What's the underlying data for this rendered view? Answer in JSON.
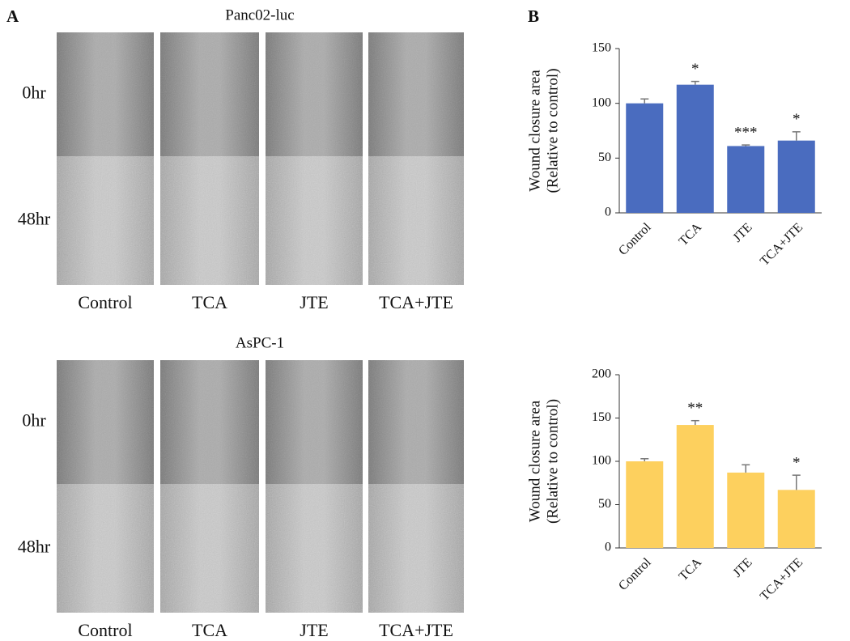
{
  "panel_a": {
    "label": "A",
    "blocks": [
      {
        "title": "Panc02-luc",
        "rows": [
          "0hr",
          "48hr"
        ],
        "columns": [
          "Control",
          "TCA",
          "JTE",
          "TCA+JTE"
        ]
      },
      {
        "title": "AsPC-1",
        "rows": [
          "0hr",
          "48hr"
        ],
        "columns": [
          "Control",
          "TCA",
          "JTE",
          "TCA+JTE"
        ]
      }
    ]
  },
  "panel_b": {
    "label": "B"
  },
  "chart_data": [
    {
      "type": "bar",
      "ylabel": [
        "Wound closure area",
        "(Relative to control)"
      ],
      "categories": [
        "Control",
        "TCA",
        "JTE",
        "TCA+JTE"
      ],
      "values": [
        100,
        117,
        61,
        66
      ],
      "errors": [
        4,
        3,
        1,
        8
      ],
      "annotations": [
        null,
        "*",
        "***",
        "*"
      ],
      "color": "#4a6cbf",
      "ylim": [
        0,
        150
      ],
      "yticks": [
        0,
        50,
        100,
        150
      ],
      "grid": false
    },
    {
      "type": "bar",
      "ylabel": [
        "Wound closure area",
        "(Relative to control)"
      ],
      "categories": [
        "Control",
        "TCA",
        "JTE",
        "TCA+JTE"
      ],
      "values": [
        100,
        142,
        87,
        67
      ],
      "errors": [
        3,
        5,
        9,
        17
      ],
      "annotations": [
        null,
        "**",
        null,
        "*"
      ],
      "color": "#fdd05e",
      "ylim": [
        0,
        200
      ],
      "yticks": [
        0,
        50,
        100,
        150,
        200
      ],
      "grid": false
    }
  ]
}
